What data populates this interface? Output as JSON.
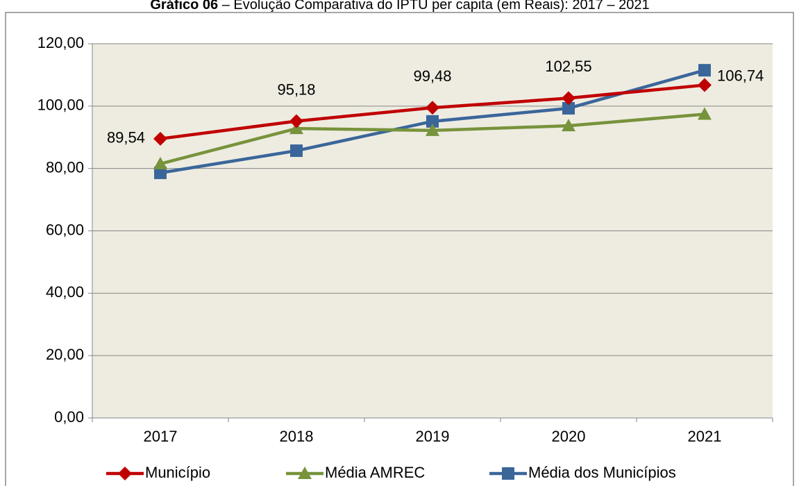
{
  "chart_data": {
    "type": "line",
    "title": {
      "label": "Gráfico 06",
      "text": " – Evolução Comparativa do IPTU per capita (em Reais): 2017 – 2021"
    },
    "categories": [
      "2017",
      "2018",
      "2019",
      "2020",
      "2021"
    ],
    "series": [
      {
        "name": "Município",
        "color": "#c00000",
        "marker": "diamond",
        "values": [
          89.54,
          95.18,
          99.48,
          102.55,
          106.74
        ],
        "value_labels": [
          "89,54",
          "95,18",
          "99,48",
          "102,55",
          "106,74"
        ]
      },
      {
        "name": "Média AMREC",
        "color": "#77933c",
        "marker": "triangle",
        "values": [
          81.5,
          92.8,
          92.2,
          93.7,
          97.4
        ]
      },
      {
        "name": "Média dos Municípios",
        "color": "#3a669a",
        "marker": "square",
        "values": [
          78.6,
          85.7,
          95.1,
          99.3,
          111.5
        ]
      }
    ],
    "ylim": [
      0,
      120
    ],
    "yticks": [
      {
        "value": 0,
        "label": "0,00"
      },
      {
        "value": 20,
        "label": "20,00"
      },
      {
        "value": 40,
        "label": "40,00"
      },
      {
        "value": 60,
        "label": "60,00"
      },
      {
        "value": 80,
        "label": "80,00"
      },
      {
        "value": 100,
        "label": "100,00"
      },
      {
        "value": 120,
        "label": "120,00"
      }
    ],
    "grid": true,
    "legend": "bottom",
    "plot_background": "#eeece1"
  }
}
